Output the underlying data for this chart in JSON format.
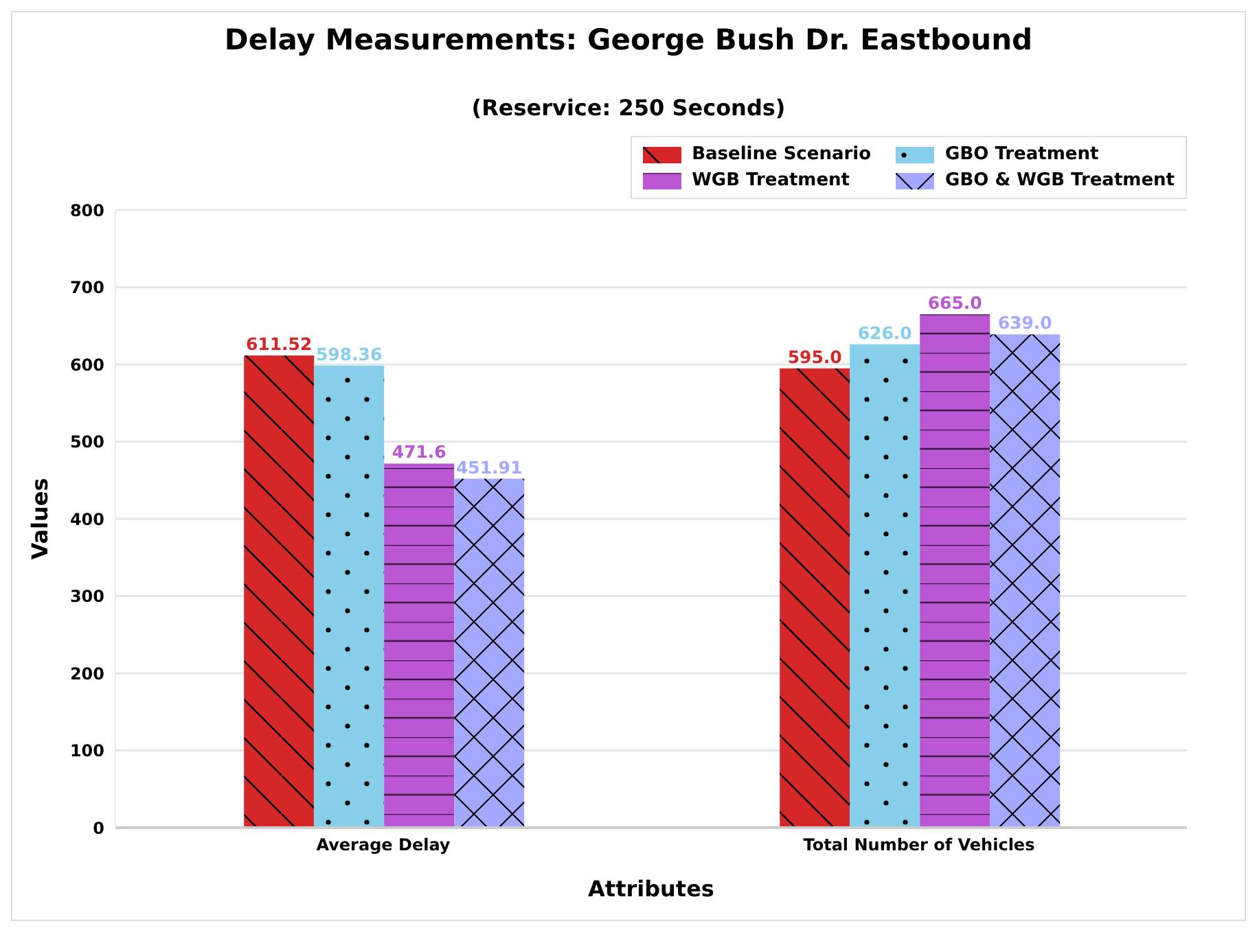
{
  "chart_data": {
    "type": "bar",
    "title": "Delay Measurements: George Bush Dr. Eastbound",
    "subtitle": "(Reservice: 250 Seconds)",
    "xlabel": "Attributes",
    "ylabel": "Values",
    "categories": [
      "Average Delay",
      "Total Number of Vehicles"
    ],
    "series": [
      {
        "name": "Baseline Scenario",
        "color": "#d62728",
        "values": [
          611.52,
          595.0
        ],
        "value_labels": [
          "611.52",
          "595.0"
        ]
      },
      {
        "name": "GBO Treatment",
        "color": "#87ceeb",
        "values": [
          598.36,
          626.0
        ],
        "value_labels": [
          "598.36",
          "626.0"
        ]
      },
      {
        "name": "WGB Treatment",
        "color": "#ba55d3",
        "values": [
          471.6,
          665.0
        ],
        "value_labels": [
          "471.6",
          "665.0"
        ]
      },
      {
        "name": "GBO & WGB Treatment",
        "color": "#a3a9ff",
        "values": [
          451.91,
          639.0
        ],
        "value_labels": [
          "451.91",
          "639.0"
        ]
      }
    ],
    "ylim": [
      0,
      800
    ],
    "yticks": [
      0,
      100,
      200,
      300,
      400,
      500,
      600,
      700,
      800
    ],
    "grid": "y",
    "legend": "top right"
  }
}
